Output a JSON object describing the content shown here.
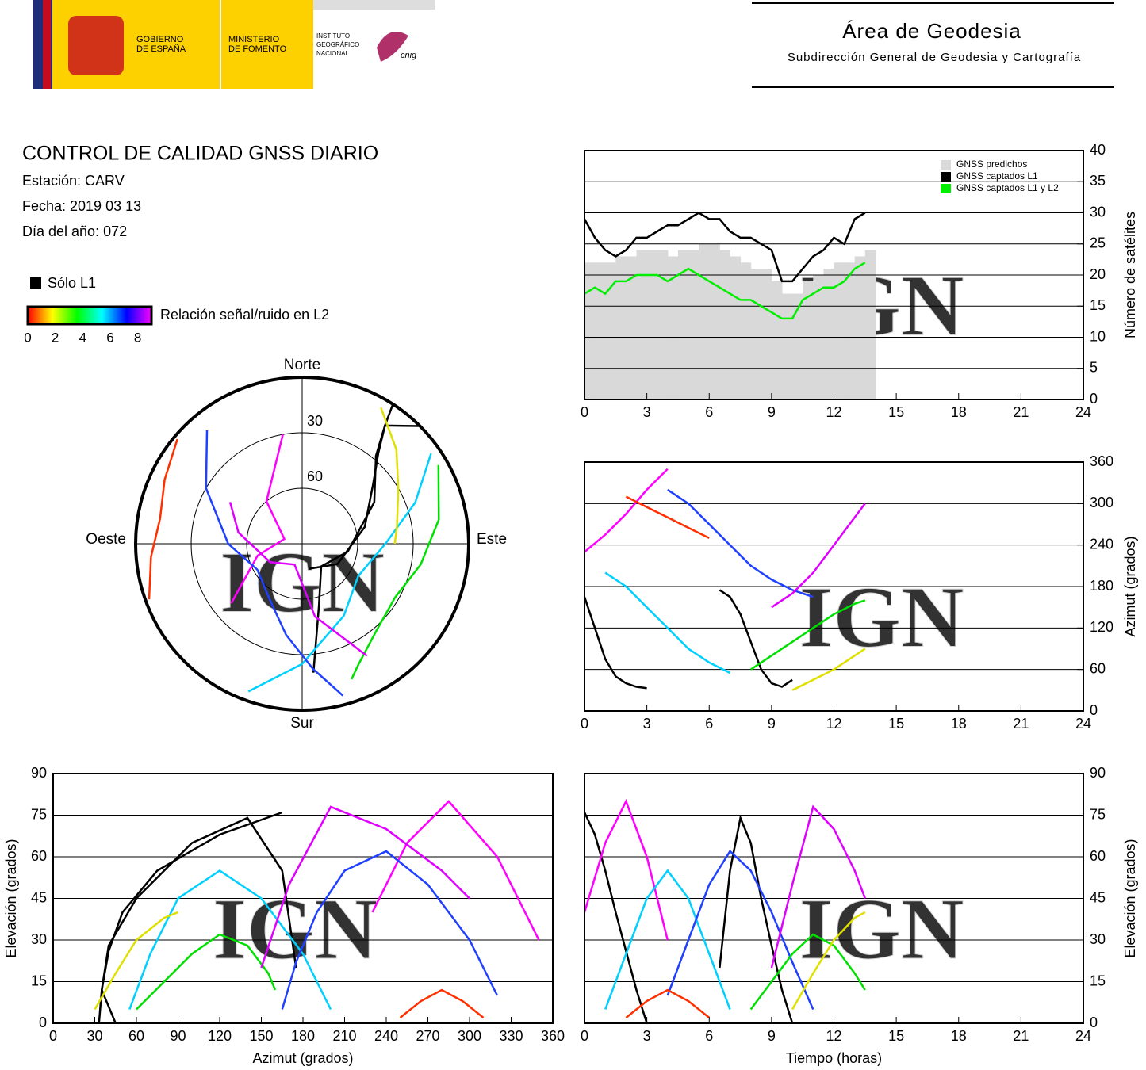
{
  "header": {
    "gov_lines": [
      "GOBIERNO",
      "DE ESPAÑA"
    ],
    "ministry_lines": [
      "MINISTERIO",
      "DE FOMENTO"
    ],
    "institute_lines": [
      "INSTITUTO",
      "GEOGRÁFICO",
      "NACIONAL"
    ],
    "cnig": "cnig",
    "area": "Área de Geodesia",
    "subdirectorate": "Subdirección General de Geodesia y Cartografía"
  },
  "report": {
    "title": "CONTROL DE CALIDAD GNSS DIARIO",
    "station": "Estación: CARV",
    "date": "Fecha: 2019 03 13",
    "doy": "Día del año: 072"
  },
  "snr_legend": {
    "l1_only": "Sólo L1",
    "l1_color": "#000000",
    "label": "Relación señal/ruido en L2",
    "ticks": [
      0,
      2,
      4,
      6,
      8
    ],
    "lim": [
      0,
      9
    ],
    "colors": [
      "#ff0000",
      "#ffff00",
      "#00ff00",
      "#00ffff",
      "#0000ff",
      "#ff00ff"
    ]
  },
  "watermark": "IGN",
  "chart_data": [
    {
      "type": "line",
      "ylabel": "Número de satélites",
      "y_axis_side": "right",
      "legend": "top-right",
      "xlim": [
        0,
        24
      ],
      "xticks": [
        0,
        3,
        6,
        9,
        12,
        15,
        18,
        21,
        24
      ],
      "ylim": [
        0,
        40
      ],
      "yticks": [
        0,
        5,
        10,
        15,
        20,
        25,
        30,
        35,
        40
      ],
      "grid": true,
      "x": [
        0,
        0.5,
        1,
        1.5,
        2,
        2.5,
        3,
        3.5,
        4,
        4.5,
        5,
        5.5,
        6,
        6.5,
        7,
        7.5,
        8,
        8.5,
        9,
        9.5,
        10,
        10.5,
        11,
        11.5,
        12,
        12.5,
        13,
        13.5
      ],
      "series": [
        {
          "name": "GNSS predichos",
          "color": "#d9d9d9",
          "style": "bars",
          "values": [
            22,
            22,
            22,
            23,
            23,
            24,
            24,
            24,
            23,
            24,
            24,
            25,
            25,
            24,
            23,
            22,
            21,
            21,
            19,
            17,
            17,
            19,
            20,
            21,
            22,
            22,
            23,
            24
          ]
        },
        {
          "name": "GNSS captados L1",
          "color": "#000000",
          "style": "line",
          "values": [
            29,
            26,
            24,
            23,
            24,
            26,
            26,
            27,
            28,
            28,
            29,
            30,
            29,
            29,
            27,
            26,
            26,
            25,
            24,
            19,
            19,
            21,
            23,
            24,
            26,
            25,
            29,
            30
          ]
        },
        {
          "name": "GNSS captados L1 y L2",
          "color": "#00ee00",
          "style": "line",
          "values": [
            17,
            18,
            17,
            19,
            19,
            20,
            20,
            20,
            19,
            20,
            21,
            20,
            19,
            18,
            17,
            16,
            16,
            15,
            14,
            13,
            13,
            16,
            17,
            18,
            18,
            19,
            21,
            22
          ]
        }
      ]
    },
    {
      "type": "line",
      "ylabel": "Azimut (grados)",
      "y_axis_side": "right",
      "xlim": [
        0,
        24
      ],
      "xticks": [
        0,
        3,
        6,
        9,
        12,
        15,
        18,
        21,
        24
      ],
      "ylim": [
        0,
        360
      ],
      "yticks": [
        0,
        60,
        120,
        180,
        240,
        300,
        360
      ],
      "grid": true,
      "series": [
        {
          "color": "#000000",
          "x": [
            0,
            0.5,
            1,
            1.5,
            2,
            2.5,
            3
          ],
          "values": [
            165,
            120,
            75,
            50,
            40,
            35,
            33
          ]
        },
        {
          "color": "#000000",
          "x": [
            6.5,
            7,
            7.5,
            8,
            8.5,
            9,
            9.5,
            10
          ],
          "values": [
            175,
            165,
            140,
            100,
            60,
            40,
            35,
            45
          ]
        },
        {
          "color": "#ff00ff",
          "x": [
            0,
            1,
            2,
            3,
            4
          ],
          "values": [
            230,
            255,
            285,
            320,
            350
          ]
        },
        {
          "color": "#00d0ff",
          "x": [
            1,
            2,
            3,
            4,
            5,
            6,
            7
          ],
          "values": [
            200,
            180,
            150,
            120,
            90,
            70,
            55
          ]
        },
        {
          "color": "#2040ff",
          "x": [
            4,
            5,
            6,
            7,
            8,
            9,
            10,
            11
          ],
          "values": [
            320,
            300,
            270,
            240,
            210,
            190,
            175,
            165
          ]
        },
        {
          "color": "#00e000",
          "x": [
            8,
            9,
            10,
            11,
            12,
            13,
            13.5
          ],
          "values": [
            60,
            80,
            100,
            120,
            140,
            155,
            160
          ]
        },
        {
          "color": "#e000ff",
          "x": [
            9,
            10,
            11,
            12,
            13,
            13.5
          ],
          "values": [
            150,
            170,
            200,
            240,
            280,
            300
          ]
        },
        {
          "color": "#ff3000",
          "x": [
            2,
            3,
            4,
            5,
            6
          ],
          "values": [
            310,
            295,
            280,
            265,
            250
          ]
        },
        {
          "color": "#e0e000",
          "x": [
            10,
            11,
            12,
            13,
            13.5
          ],
          "values": [
            30,
            45,
            60,
            80,
            90
          ]
        }
      ]
    },
    {
      "type": "line",
      "xlabel": "Tiempo (horas)",
      "ylabel": "Elevación (grados)",
      "y_axis_side": "right",
      "xlim": [
        0,
        24
      ],
      "xticks": [
        0,
        3,
        6,
        9,
        12,
        15,
        18,
        21,
        24
      ],
      "ylim": [
        0,
        90
      ],
      "yticks": [
        0,
        15,
        30,
        45,
        60,
        75,
        90
      ],
      "grid": true,
      "series": [
        {
          "color": "#000000",
          "x": [
            0,
            0.5,
            1,
            1.5,
            2,
            2.5,
            3
          ],
          "values": [
            76,
            68,
            55,
            40,
            26,
            12,
            0
          ]
        },
        {
          "color": "#000000",
          "x": [
            6.5,
            7,
            7.5,
            8,
            8.5,
            9,
            9.5,
            10
          ],
          "values": [
            20,
            55,
            74,
            65,
            45,
            28,
            12,
            0
          ]
        },
        {
          "color": "#ff00ff",
          "x": [
            0,
            1,
            2,
            3,
            4
          ],
          "values": [
            40,
            65,
            80,
            60,
            30
          ]
        },
        {
          "color": "#00d0ff",
          "x": [
            1,
            2,
            3,
            4,
            5,
            6,
            7
          ],
          "values": [
            5,
            25,
            45,
            55,
            45,
            25,
            5
          ]
        },
        {
          "color": "#2040ff",
          "x": [
            4,
            5,
            6,
            7,
            8,
            9,
            10,
            11
          ],
          "values": [
            10,
            30,
            50,
            62,
            55,
            40,
            22,
            5
          ]
        },
        {
          "color": "#00e000",
          "x": [
            8,
            9,
            10,
            11,
            12,
            13,
            13.5
          ],
          "values": [
            5,
            15,
            25,
            32,
            28,
            18,
            12
          ]
        },
        {
          "color": "#e000ff",
          "x": [
            9,
            10,
            11,
            12,
            13,
            13.5
          ],
          "values": [
            20,
            50,
            78,
            70,
            55,
            45
          ]
        },
        {
          "color": "#ff3000",
          "x": [
            2,
            3,
            4,
            5,
            6
          ],
          "values": [
            2,
            8,
            12,
            8,
            2
          ]
        },
        {
          "color": "#e0e000",
          "x": [
            10,
            11,
            12,
            13,
            13.5
          ],
          "values": [
            5,
            18,
            30,
            38,
            40
          ]
        }
      ]
    },
    {
      "type": "line",
      "xlabel": "Azimut (grados)",
      "ylabel": "Elevación (grados)",
      "y_axis_side": "left",
      "xlim": [
        0,
        360
      ],
      "xticks": [
        0,
        30,
        60,
        90,
        120,
        150,
        180,
        210,
        240,
        270,
        300,
        330,
        360
      ],
      "ylim": [
        0,
        90
      ],
      "yticks": [
        0,
        15,
        30,
        45,
        60,
        75,
        90
      ],
      "grid": true,
      "series": [
        {
          "color": "#000000",
          "x": [
            165,
            120,
            75,
            50,
            40,
            35,
            33
          ],
          "values": [
            76,
            68,
            55,
            40,
            26,
            12,
            0
          ]
        },
        {
          "color": "#000000",
          "x": [
            175,
            165,
            140,
            100,
            60,
            40,
            35,
            45
          ],
          "values": [
            20,
            55,
            74,
            65,
            45,
            28,
            12,
            0
          ]
        },
        {
          "color": "#ff00ff",
          "x": [
            230,
            255,
            285,
            320,
            350
          ],
          "values": [
            40,
            65,
            80,
            60,
            30
          ]
        },
        {
          "color": "#00d0ff",
          "x": [
            200,
            180,
            150,
            120,
            90,
            70,
            55
          ],
          "values": [
            5,
            25,
            45,
            55,
            45,
            25,
            5
          ]
        },
        {
          "color": "#2040ff",
          "x": [
            320,
            300,
            270,
            240,
            210,
            190,
            175,
            165
          ],
          "values": [
            10,
            30,
            50,
            62,
            55,
            40,
            22,
            5
          ]
        },
        {
          "color": "#00e000",
          "x": [
            60,
            80,
            100,
            120,
            140,
            155,
            160
          ],
          "values": [
            5,
            15,
            25,
            32,
            28,
            18,
            12
          ]
        },
        {
          "color": "#e000ff",
          "x": [
            150,
            170,
            200,
            240,
            280,
            300
          ],
          "values": [
            20,
            50,
            78,
            70,
            55,
            45
          ]
        },
        {
          "color": "#ff3000",
          "x": [
            310,
            295,
            280,
            265,
            250
          ],
          "values": [
            2,
            8,
            12,
            8,
            2
          ]
        },
        {
          "color": "#e0e000",
          "x": [
            30,
            45,
            60,
            80,
            90
          ],
          "values": [
            5,
            18,
            30,
            38,
            40
          ]
        }
      ]
    },
    {
      "type": "polar",
      "direction_labels": [
        "Norte",
        "Este",
        "Sur",
        "Oeste"
      ],
      "rlim": [
        90,
        0
      ],
      "rticks": [
        30,
        60
      ],
      "series": [
        {
          "color": "#000000",
          "theta": [
            165,
            120,
            75,
            50,
            40,
            35,
            33
          ],
          "values": [
            76,
            68,
            55,
            40,
            26,
            12,
            0
          ]
        },
        {
          "color": "#000000",
          "theta": [
            175,
            165,
            140,
            100,
            60,
            40,
            35,
            45
          ],
          "values": [
            20,
            55,
            74,
            65,
            45,
            28,
            12,
            0
          ]
        },
        {
          "color": "#ff00ff",
          "theta": [
            230,
            255,
            285,
            320,
            350
          ],
          "values": [
            40,
            65,
            80,
            60,
            30
          ]
        },
        {
          "color": "#00d0ff",
          "theta": [
            200,
            180,
            150,
            120,
            90,
            70,
            55
          ],
          "values": [
            5,
            25,
            45,
            55,
            45,
            25,
            5
          ]
        },
        {
          "color": "#2040ff",
          "theta": [
            320,
            300,
            270,
            240,
            210,
            190,
            175,
            165
          ],
          "values": [
            10,
            30,
            50,
            62,
            55,
            40,
            22,
            5
          ]
        },
        {
          "color": "#00e000",
          "theta": [
            60,
            80,
            100,
            120,
            140,
            155,
            160
          ],
          "values": [
            5,
            15,
            25,
            32,
            28,
            18,
            12
          ]
        },
        {
          "color": "#e000ff",
          "theta": [
            150,
            170,
            200,
            240,
            280,
            300
          ],
          "values": [
            20,
            50,
            78,
            70,
            55,
            45
          ]
        },
        {
          "color": "#ff3000",
          "theta": [
            310,
            295,
            280,
            265,
            250
          ],
          "values": [
            2,
            8,
            12,
            8,
            2
          ]
        },
        {
          "color": "#e0e000",
          "theta": [
            30,
            45,
            60,
            80,
            90
          ],
          "values": [
            5,
            18,
            30,
            38,
            40
          ]
        }
      ]
    }
  ]
}
